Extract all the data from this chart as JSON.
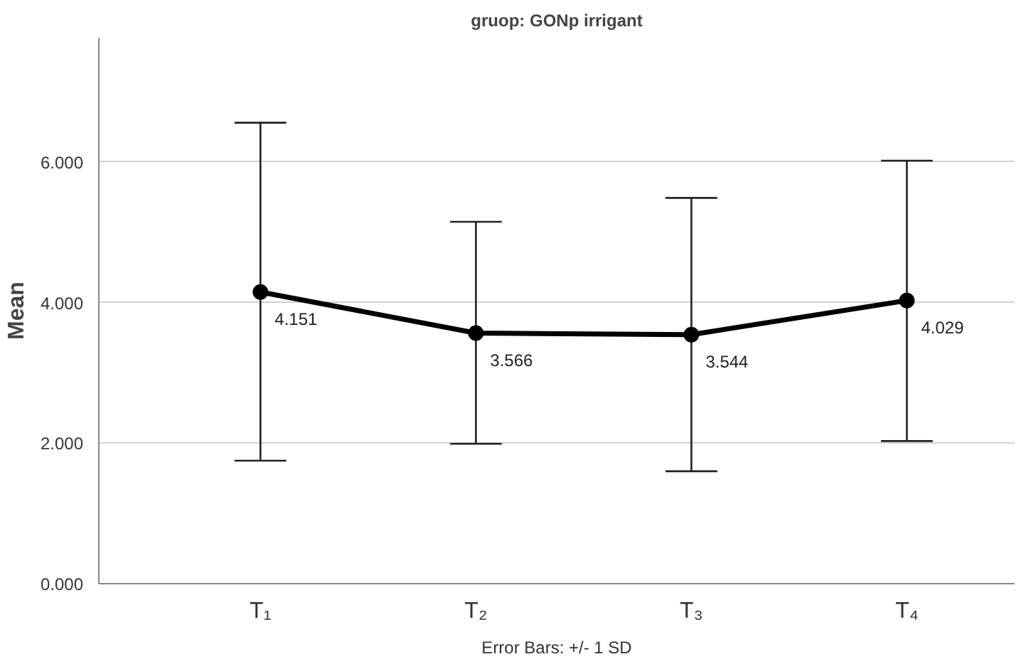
{
  "chart_data": {
    "type": "line",
    "title": "gruop: GONp irrigant",
    "ylabel": "Mean",
    "categories": [
      "T₁",
      "T₂",
      "T₃",
      "T₄"
    ],
    "values": [
      4.151,
      3.566,
      3.544,
      4.029
    ],
    "errors": [
      [
        1.75,
        6.56
      ],
      [
        1.99,
        5.15
      ],
      [
        1.6,
        5.49
      ],
      [
        2.03,
        6.02
      ]
    ],
    "color": "#000000",
    "marker": "circle",
    "line_style": "solid",
    "data_labels": true,
    "ylim": [
      0,
      7.77
    ],
    "yticks": [
      {
        "value": 0,
        "label": "0.000"
      },
      {
        "value": 2,
        "label": "2.000"
      },
      {
        "value": 4,
        "label": "4.000"
      },
      {
        "value": 6,
        "label": "6.000"
      }
    ],
    "grid": "y",
    "annotations": [
      "Error Bars: +/- 1 SD"
    ]
  }
}
